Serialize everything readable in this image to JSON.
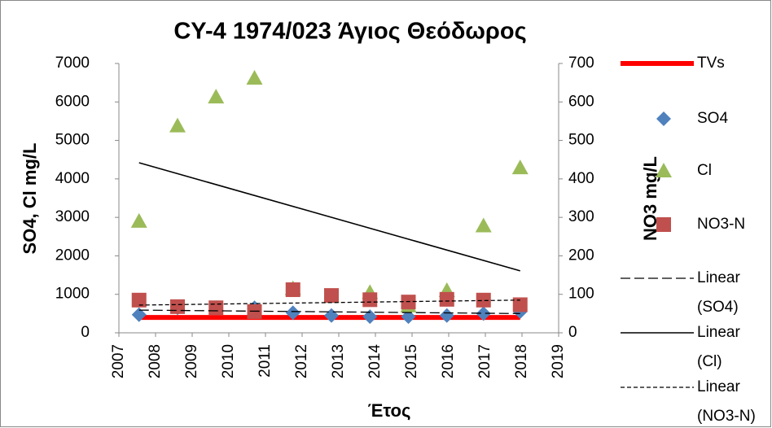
{
  "chart_data": {
    "type": "scatter",
    "title": "CY-4 1974/023 Άγιος Θεόδωρος",
    "x_label": "Έτος",
    "y_label": "SO4, Cl mg/L",
    "y2_label": "NO3 mg/L",
    "xlim": [
      2007,
      2019
    ],
    "xticks": [
      2007,
      2008,
      2009,
      2010,
      2011,
      2012,
      2013,
      2014,
      2015,
      2016,
      2017,
      2018,
      2019
    ],
    "ylim": [
      0,
      7000
    ],
    "yticks": [
      0,
      1000,
      2000,
      3000,
      4000,
      5000,
      6000,
      7000
    ],
    "y2lim": [
      0,
      700
    ],
    "y2ticks": [
      0,
      100,
      200,
      300,
      400,
      500,
      600,
      700
    ],
    "series": [
      {
        "name": "TVs",
        "color": "#ff0000",
        "style": "line",
        "width": 6,
        "x": [
          2007.55,
          2017.95
        ],
        "values": [
          400,
          400
        ]
      },
      {
        "name": "SO4",
        "color": "#4f81bd",
        "style": "marker",
        "marker": "diamond",
        "x": [
          2007.55,
          2008.6,
          2009.65,
          2010.7,
          2011.75,
          2012.8,
          2013.85,
          2014.9,
          2015.95,
          2016.95,
          2017.95
        ],
        "values": [
          470,
          650,
          650,
          650,
          520,
          450,
          420,
          420,
          450,
          500,
          550
        ]
      },
      {
        "name": "Cl",
        "color": "#9bbb59",
        "style": "marker",
        "marker": "triangle",
        "x": [
          2007.55,
          2008.6,
          2009.65,
          2010.7,
          2011.75,
          2012.8,
          2013.85,
          2014.9,
          2015.95,
          2016.95,
          2017.95
        ],
        "values": [
          2900,
          5380,
          6130,
          6620,
          1150,
          950,
          1050,
          700,
          1100,
          2780,
          4290
        ]
      },
      {
        "name": "NO3-N",
        "color": "#c0504d",
        "style": "marker",
        "marker": "square",
        "axis": "y2",
        "x": [
          2007.55,
          2008.6,
          2009.65,
          2010.7,
          2011.75,
          2012.8,
          2013.85,
          2014.9,
          2015.95,
          2016.95,
          2017.95
        ],
        "values": [
          85,
          68,
          65,
          55,
          112,
          97,
          86,
          80,
          87,
          85,
          73
        ]
      },
      {
        "name": "Linear (SO4)",
        "color": "#000000",
        "style": "line",
        "width": 1.3,
        "dash": "12 5",
        "x": [
          2007.55,
          2017.95
        ],
        "values": [
          590,
          500
        ]
      },
      {
        "name": "Linear (Cl)",
        "color": "#000000",
        "style": "line",
        "width": 1.6,
        "x": [
          2007.55,
          2017.95
        ],
        "values": [
          4420,
          1610
        ]
      },
      {
        "name": "Linear (NO3-N)",
        "color": "#000000",
        "style": "line",
        "width": 1.3,
        "dash": "5 3",
        "axis": "y2",
        "x": [
          2007.55,
          2017.95
        ],
        "values": [
          72,
          85
        ]
      }
    ]
  }
}
